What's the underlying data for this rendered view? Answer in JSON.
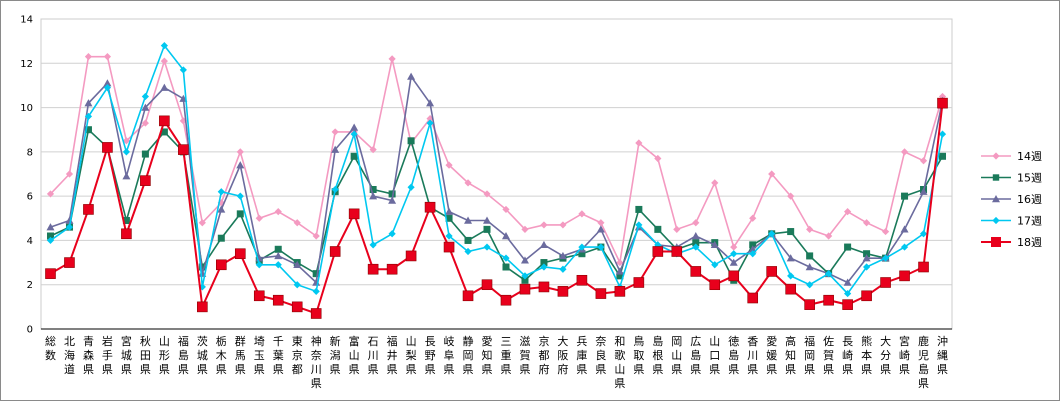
{
  "chart_data": {
    "type": "line",
    "ylim": [
      0,
      14
    ],
    "yticks": [
      0,
      2,
      4,
      6,
      8,
      10,
      12,
      14
    ],
    "grid": true,
    "legend_position": "right",
    "categories": [
      "総数",
      "北海道",
      "青森県",
      "岩手県",
      "宮城県",
      "秋田県",
      "山形県",
      "福島県",
      "茨城県",
      "栃木県",
      "群馬県",
      "埼玉県",
      "千葉県",
      "東京都",
      "神奈川県",
      "新潟県",
      "富山県",
      "石川県",
      "福井県",
      "山梨県",
      "長野県",
      "岐阜県",
      "静岡県",
      "愛知県",
      "三重県",
      "滋賀県",
      "京都府",
      "大阪府",
      "兵庫県",
      "奈良県",
      "和歌山県",
      "鳥取県",
      "島根県",
      "岡山県",
      "広島県",
      "山口県",
      "徳島県",
      "香川県",
      "愛媛県",
      "高知県",
      "福岡県",
      "佐賀県",
      "長崎県",
      "熊本県",
      "大分県",
      "宮崎県",
      "鹿児島県",
      "沖縄県"
    ],
    "series": [
      {
        "name": "14週",
        "color": "#f49ac1",
        "marker": "diamond",
        "values": [
          6.1,
          7.0,
          12.3,
          12.3,
          8.5,
          9.3,
          12.1,
          9.4,
          4.8,
          5.7,
          8.0,
          5.0,
          5.3,
          4.8,
          4.2,
          8.9,
          8.9,
          8.1,
          12.2,
          8.4,
          9.5,
          7.4,
          6.6,
          6.1,
          5.4,
          4.5,
          4.7,
          4.7,
          5.2,
          4.8,
          3.0,
          8.4,
          7.7,
          4.5,
          4.8,
          6.6,
          3.7,
          5.0,
          7.0,
          6.0,
          4.5,
          4.2,
          5.3,
          4.8,
          4.4,
          8.0,
          7.6,
          10.5
        ]
      },
      {
        "name": "15週",
        "color": "#1a7a5a",
        "marker": "square",
        "values": [
          4.2,
          4.6,
          9.0,
          8.2,
          4.9,
          7.9,
          8.9,
          8.0,
          2.8,
          4.1,
          5.2,
          3.1,
          3.6,
          3.0,
          2.5,
          6.2,
          7.8,
          6.3,
          6.1,
          8.5,
          5.5,
          5.0,
          4.0,
          4.5,
          2.8,
          2.2,
          3.0,
          3.2,
          3.4,
          3.7,
          2.4,
          5.4,
          4.5,
          3.6,
          3.9,
          3.9,
          2.2,
          3.8,
          4.3,
          4.4,
          3.3,
          2.5,
          3.7,
          3.4,
          3.2,
          6.0,
          6.3,
          7.8
        ]
      },
      {
        "name": "16週",
        "color": "#6b6b9e",
        "marker": "triangle",
        "values": [
          4.6,
          4.9,
          10.2,
          11.1,
          6.9,
          10.0,
          10.9,
          10.4,
          2.5,
          5.4,
          7.4,
          3.2,
          3.3,
          2.9,
          2.1,
          8.1,
          9.1,
          6.0,
          5.8,
          11.4,
          10.2,
          5.3,
          4.9,
          4.9,
          4.2,
          3.1,
          3.8,
          3.3,
          3.6,
          4.5,
          2.6,
          4.6,
          3.8,
          3.7,
          4.2,
          3.8,
          3.0,
          3.6,
          4.3,
          3.2,
          2.8,
          2.5,
          2.1,
          3.2,
          3.2,
          4.5,
          6.2,
          10.3
        ]
      },
      {
        "name": "17週",
        "color": "#00c8f0",
        "marker": "diamond",
        "values": [
          4.0,
          4.6,
          9.6,
          10.9,
          8.0,
          10.5,
          12.8,
          11.7,
          1.9,
          6.2,
          6.0,
          2.9,
          2.9,
          2.0,
          1.7,
          6.3,
          8.8,
          3.8,
          4.3,
          6.4,
          9.3,
          4.2,
          3.5,
          3.7,
          3.2,
          2.4,
          2.8,
          2.7,
          3.7,
          3.7,
          1.9,
          4.7,
          3.8,
          3.4,
          3.7,
          2.9,
          3.4,
          3.4,
          4.3,
          2.4,
          2.0,
          2.5,
          1.6,
          2.8,
          3.2,
          3.7,
          4.3,
          8.8
        ]
      },
      {
        "name": "18週",
        "color": "#e8001c",
        "marker": "square",
        "values": [
          2.5,
          3.0,
          5.4,
          8.2,
          4.3,
          6.7,
          9.4,
          8.1,
          1.0,
          2.9,
          3.4,
          1.5,
          1.3,
          1.0,
          0.7,
          3.5,
          5.2,
          2.7,
          2.7,
          3.3,
          5.5,
          3.7,
          1.5,
          2.0,
          1.3,
          1.8,
          1.9,
          1.7,
          2.2,
          1.6,
          1.7,
          2.1,
          3.5,
          3.5,
          2.6,
          2.0,
          2.4,
          1.4,
          2.6,
          1.8,
          1.1,
          1.3,
          1.1,
          1.5,
          2.1,
          2.4,
          2.8,
          10.2
        ]
      }
    ]
  }
}
